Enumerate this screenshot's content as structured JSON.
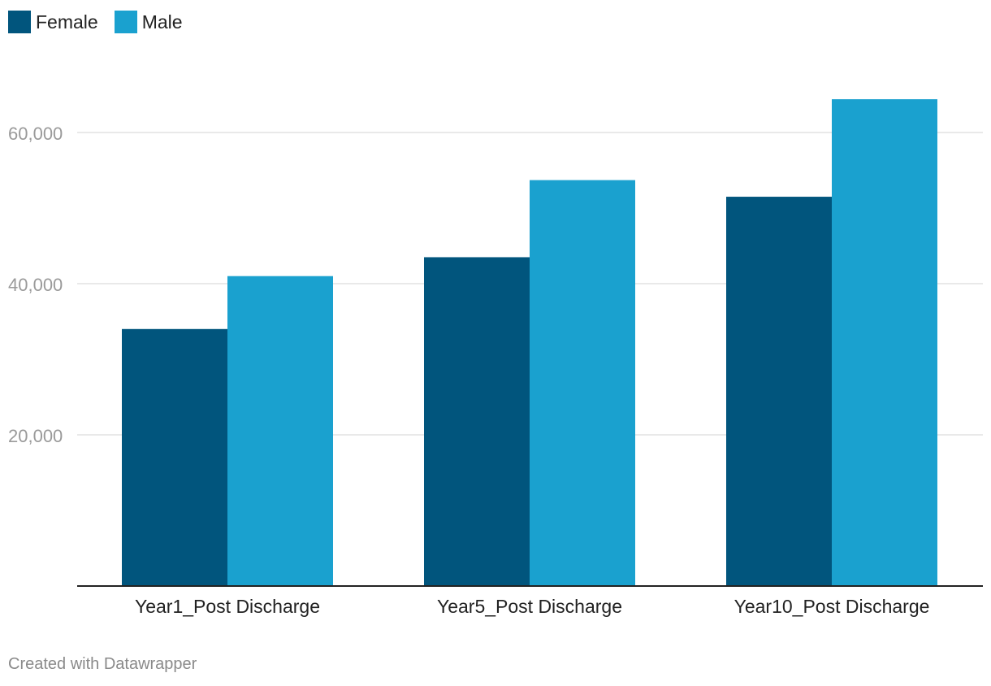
{
  "chart_data": {
    "type": "bar",
    "categories": [
      "Year1_Post Discharge",
      "Year5_Post Discharge",
      "Year10_Post Discharge"
    ],
    "series": [
      {
        "name": "Female",
        "values": [
          34000,
          43500,
          51500
        ],
        "color": "#01557D"
      },
      {
        "name": "Male",
        "values": [
          41000,
          53700,
          64400
        ],
        "color": "#1AA1CF"
      }
    ],
    "yticks": [
      20000,
      40000,
      60000
    ],
    "ytick_labels": [
      "20,000",
      "40,000",
      "60,000"
    ],
    "ylim": [
      0,
      70000
    ],
    "grid": true,
    "legend_position": "top-left",
    "title": "",
    "xlabel": "",
    "ylabel": ""
  },
  "footer": {
    "credit": "Created with Datawrapper"
  }
}
